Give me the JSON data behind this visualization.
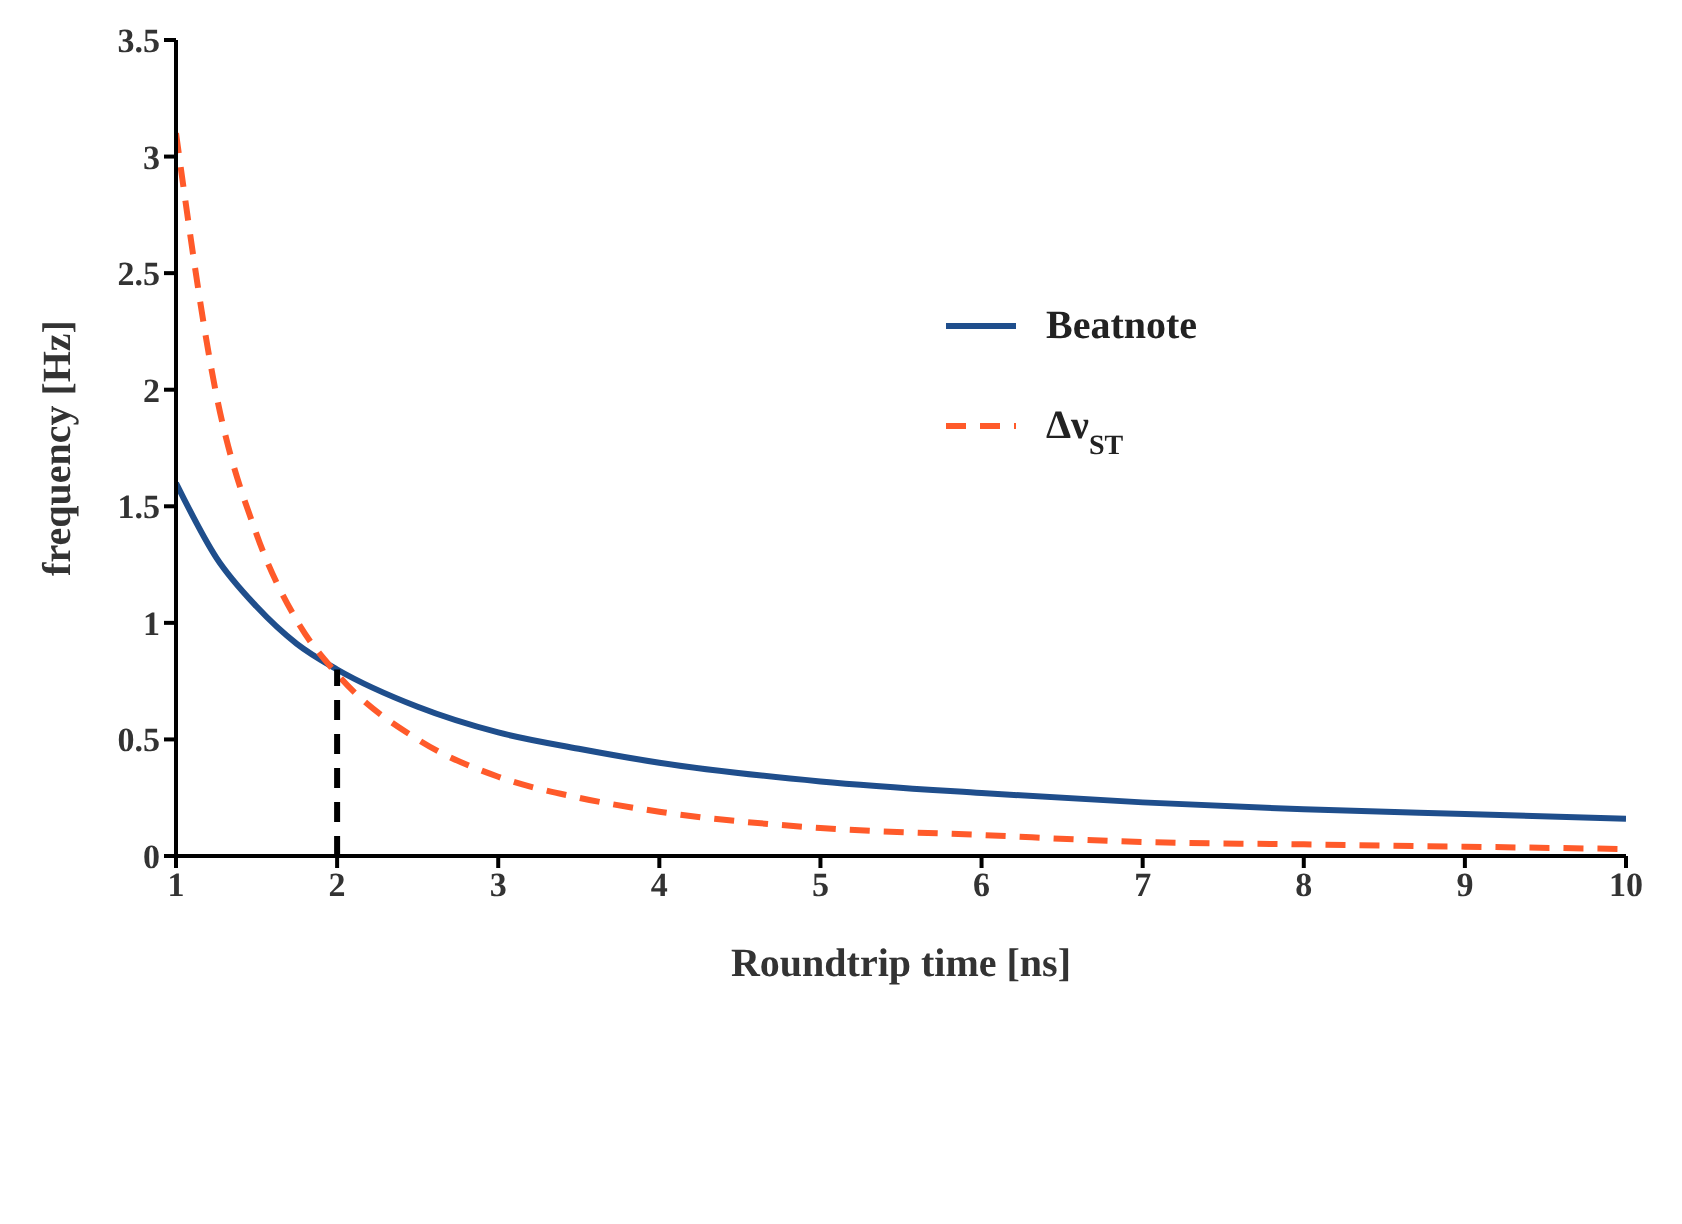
{
  "chart_data": {
    "type": "line",
    "xlabel": "Roundtrip time [ns]",
    "ylabel": "frequency [Hz]",
    "xlim": [
      1,
      10
    ],
    "xticks": [
      1,
      2,
      3,
      4,
      5,
      6,
      7,
      8,
      9,
      10
    ],
    "ylim": [
      0,
      3.5
    ],
    "yticks": [
      0,
      0.5,
      1,
      1.5,
      2,
      2.5,
      3,
      3.5
    ],
    "legend": "top right",
    "marker": "none",
    "series": [
      {
        "name": "Beatnote",
        "color": "#1f4e8c",
        "line_style": "solid",
        "x": [
          1,
          1.25,
          1.5,
          1.75,
          2,
          2.5,
          3,
          3.5,
          4,
          5,
          6,
          7,
          8,
          9,
          10
        ],
        "values": [
          1.6,
          1.28,
          1.07,
          0.91,
          0.8,
          0.64,
          0.53,
          0.46,
          0.4,
          0.32,
          0.27,
          0.23,
          0.2,
          0.18,
          0.16
        ]
      },
      {
        "name": "Δν$_{ST}$",
        "color": "#ff5a2a",
        "line_style": "dashed",
        "x": [
          1,
          1.25,
          1.5,
          1.75,
          2,
          2.5,
          3,
          3.5,
          4,
          5,
          6,
          7,
          8,
          9,
          10
        ],
        "values": [
          3.1,
          1.98,
          1.38,
          1.01,
          0.78,
          0.5,
          0.34,
          0.25,
          0.19,
          0.12,
          0.09,
          0.06,
          0.05,
          0.04,
          0.03
        ]
      },
      {
        "color": "#000000",
        "line_style": "dashed",
        "x": [
          2,
          2
        ],
        "values": [
          0,
          0.8
        ]
      }
    ]
  }
}
